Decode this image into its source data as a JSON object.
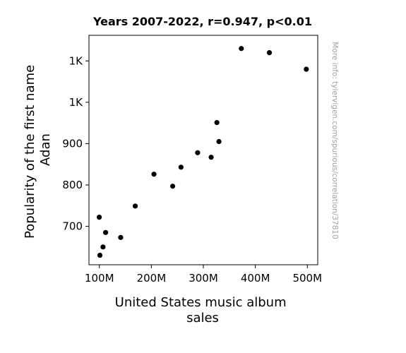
{
  "chart_data": {
    "type": "scatter",
    "title": "Years 2007-2022, r=0.947, p<0.01",
    "xlabel_lines": [
      "United States music album",
      "sales"
    ],
    "ylabel_lines": [
      "Popularity of the first name",
      "Adan"
    ],
    "xlim": [
      80,
      520
    ],
    "ylim": [
      607,
      1162
    ],
    "x_ticks": [
      {
        "value": 100,
        "label": "100M"
      },
      {
        "value": 200,
        "label": "200M"
      },
      {
        "value": 300,
        "label": "300M"
      },
      {
        "value": 400,
        "label": "400M"
      },
      {
        "value": 500,
        "label": "500M"
      }
    ],
    "y_ticks": [
      {
        "value": 700,
        "label": "700"
      },
      {
        "value": 800,
        "label": "800"
      },
      {
        "value": 900,
        "label": "900"
      },
      {
        "value": 1000,
        "label": "1K"
      },
      {
        "value": 1100,
        "label": "1K"
      }
    ],
    "points": [
      {
        "x": 99.8,
        "y": 722
      },
      {
        "x": 101.0,
        "y": 630
      },
      {
        "x": 107.0,
        "y": 650
      },
      {
        "x": 112.0,
        "y": 685
      },
      {
        "x": 141.0,
        "y": 673
      },
      {
        "x": 169.0,
        "y": 749
      },
      {
        "x": 205.0,
        "y": 826
      },
      {
        "x": 241.0,
        "y": 797
      },
      {
        "x": 257.0,
        "y": 843
      },
      {
        "x": 289.0,
        "y": 878
      },
      {
        "x": 315.0,
        "y": 867
      },
      {
        "x": 326.0,
        "y": 951
      },
      {
        "x": 330.0,
        "y": 905
      },
      {
        "x": 373.0,
        "y": 1130
      },
      {
        "x": 427.0,
        "y": 1120
      },
      {
        "x": 498.0,
        "y": 1080
      }
    ],
    "grid": false,
    "marker_color": "#000000"
  },
  "watermark": "More info: tylervigen.com/spurious/correlation/37810"
}
